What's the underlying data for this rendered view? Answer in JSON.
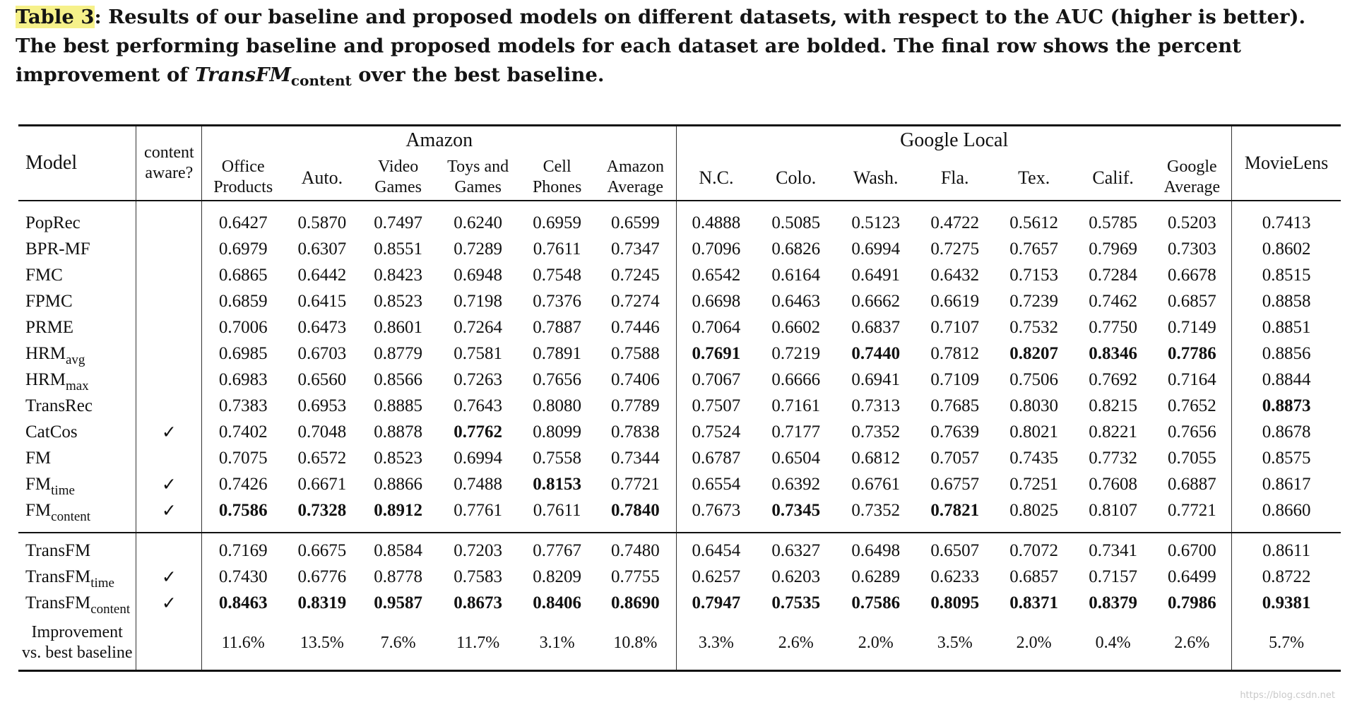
{
  "caption": {
    "label": "Table 3",
    "text": ": Results of our baseline and proposed models on different datasets, with respect to the AUC (higher is better). The best performing baseline and proposed models for each dataset are bolded. The final row shows the percent improvement of ",
    "model_name": "TransFM",
    "model_sub": "content",
    "tail": " over the best baseline."
  },
  "header": {
    "model": "Model",
    "content_aware": [
      "content",
      "aware?"
    ],
    "group_amazon": "Amazon",
    "group_google": "Google Local",
    "columns": [
      [
        "Office",
        "Products"
      ],
      [
        "Auto."
      ],
      [
        "Video",
        "Games"
      ],
      [
        "Toys and",
        "Games"
      ],
      [
        "Cell",
        "Phones"
      ],
      [
        "Amazon",
        "Average"
      ],
      [
        "N.C."
      ],
      [
        "Colo."
      ],
      [
        "Wash."
      ],
      [
        "Fla."
      ],
      [
        "Tex."
      ],
      [
        "Calif."
      ],
      [
        "Google",
        "Average"
      ],
      [
        "MovieLens"
      ]
    ]
  },
  "baselines": [
    {
      "name": "PopRec",
      "sub": "",
      "check": "",
      "values": [
        "0.6427",
        "0.5870",
        "0.7497",
        "0.6240",
        "0.6959",
        "0.6599",
        "0.4888",
        "0.5085",
        "0.5123",
        "0.4722",
        "0.5612",
        "0.5785",
        "0.5203",
        "0.7413"
      ],
      "bold": []
    },
    {
      "name": "BPR-MF",
      "sub": "",
      "check": "",
      "values": [
        "0.6979",
        "0.6307",
        "0.8551",
        "0.7289",
        "0.7611",
        "0.7347",
        "0.7096",
        "0.6826",
        "0.6994",
        "0.7275",
        "0.7657",
        "0.7969",
        "0.7303",
        "0.8602"
      ],
      "bold": []
    },
    {
      "name": "FMC",
      "sub": "",
      "check": "",
      "values": [
        "0.6865",
        "0.6442",
        "0.8423",
        "0.6948",
        "0.7548",
        "0.7245",
        "0.6542",
        "0.6164",
        "0.6491",
        "0.6432",
        "0.7153",
        "0.7284",
        "0.6678",
        "0.8515"
      ],
      "bold": []
    },
    {
      "name": "FPMC",
      "sub": "",
      "check": "",
      "values": [
        "0.6859",
        "0.6415",
        "0.8523",
        "0.7198",
        "0.7376",
        "0.7274",
        "0.6698",
        "0.6463",
        "0.6662",
        "0.6619",
        "0.7239",
        "0.7462",
        "0.6857",
        "0.8858"
      ],
      "bold": []
    },
    {
      "name": "PRME",
      "sub": "",
      "check": "",
      "values": [
        "0.7006",
        "0.6473",
        "0.8601",
        "0.7264",
        "0.7887",
        "0.7446",
        "0.7064",
        "0.6602",
        "0.6837",
        "0.7107",
        "0.7532",
        "0.7750",
        "0.7149",
        "0.8851"
      ],
      "bold": []
    },
    {
      "name": "HRM",
      "sub": "avg",
      "check": "",
      "values": [
        "0.6985",
        "0.6703",
        "0.8779",
        "0.7581",
        "0.7891",
        "0.7588",
        "0.7691",
        "0.7219",
        "0.7440",
        "0.7812",
        "0.8207",
        "0.8346",
        "0.7786",
        "0.8856"
      ],
      "bold": [
        6,
        8,
        10,
        11,
        12
      ]
    },
    {
      "name": "HRM",
      "sub": "max",
      "check": "",
      "values": [
        "0.6983",
        "0.6560",
        "0.8566",
        "0.7263",
        "0.7656",
        "0.7406",
        "0.7067",
        "0.6666",
        "0.6941",
        "0.7109",
        "0.7506",
        "0.7692",
        "0.7164",
        "0.8844"
      ],
      "bold": []
    },
    {
      "name": "TransRec",
      "sub": "",
      "check": "",
      "values": [
        "0.7383",
        "0.6953",
        "0.8885",
        "0.7643",
        "0.8080",
        "0.7789",
        "0.7507",
        "0.7161",
        "0.7313",
        "0.7685",
        "0.8030",
        "0.8215",
        "0.7652",
        "0.8873"
      ],
      "bold": [
        13
      ]
    },
    {
      "name": "CatCos",
      "sub": "",
      "check": "✓",
      "values": [
        "0.7402",
        "0.7048",
        "0.8878",
        "0.7762",
        "0.8099",
        "0.7838",
        "0.7524",
        "0.7177",
        "0.7352",
        "0.7639",
        "0.8021",
        "0.8221",
        "0.7656",
        "0.8678"
      ],
      "bold": [
        3
      ]
    },
    {
      "name": "FM",
      "sub": "",
      "check": "",
      "values": [
        "0.7075",
        "0.6572",
        "0.8523",
        "0.6994",
        "0.7558",
        "0.7344",
        "0.6787",
        "0.6504",
        "0.6812",
        "0.7057",
        "0.7435",
        "0.7732",
        "0.7055",
        "0.8575"
      ],
      "bold": []
    },
    {
      "name": "FM",
      "sub": "time",
      "check": "✓",
      "values": [
        "0.7426",
        "0.6671",
        "0.8866",
        "0.7488",
        "0.8153",
        "0.7721",
        "0.6554",
        "0.6392",
        "0.6761",
        "0.6757",
        "0.7251",
        "0.7608",
        "0.6887",
        "0.8617"
      ],
      "bold": [
        4
      ]
    },
    {
      "name": "FM",
      "sub": "content",
      "check": "✓",
      "values": [
        "0.7586",
        "0.7328",
        "0.8912",
        "0.7761",
        "0.7611",
        "0.7840",
        "0.7673",
        "0.7345",
        "0.7352",
        "0.7821",
        "0.8025",
        "0.8107",
        "0.7721",
        "0.8660"
      ],
      "bold": [
        0,
        1,
        2,
        5,
        7,
        9
      ]
    }
  ],
  "proposed": [
    {
      "name": "TransFM",
      "sub": "",
      "check": "",
      "values": [
        "0.7169",
        "0.6675",
        "0.8584",
        "0.7203",
        "0.7767",
        "0.7480",
        "0.6454",
        "0.6327",
        "0.6498",
        "0.6507",
        "0.7072",
        "0.7341",
        "0.6700",
        "0.8611"
      ],
      "bold": []
    },
    {
      "name": "TransFM",
      "sub": "time",
      "check": "✓",
      "values": [
        "0.7430",
        "0.6776",
        "0.8778",
        "0.7583",
        "0.8209",
        "0.7755",
        "0.6257",
        "0.6203",
        "0.6289",
        "0.6233",
        "0.6857",
        "0.7157",
        "0.6499",
        "0.8722"
      ],
      "bold": []
    },
    {
      "name": "TransFM",
      "sub": "content",
      "check": "✓",
      "values": [
        "0.8463",
        "0.8319",
        "0.9587",
        "0.8673",
        "0.8406",
        "0.8690",
        "0.7947",
        "0.7535",
        "0.7586",
        "0.8095",
        "0.8371",
        "0.8379",
        "0.7986",
        "0.9381"
      ],
      "bold": [
        0,
        1,
        2,
        3,
        4,
        5,
        6,
        7,
        8,
        9,
        10,
        11,
        12,
        13
      ]
    }
  ],
  "improvement": {
    "label": [
      "Improvement",
      "vs. best baseline"
    ],
    "values": [
      "11.6%",
      "13.5%",
      "7.6%",
      "11.7%",
      "3.1%",
      "10.8%",
      "3.3%",
      "2.6%",
      "2.0%",
      "3.5%",
      "2.0%",
      "0.4%",
      "2.6%",
      "5.7%"
    ]
  },
  "watermark": "https://blog.csdn.net"
}
